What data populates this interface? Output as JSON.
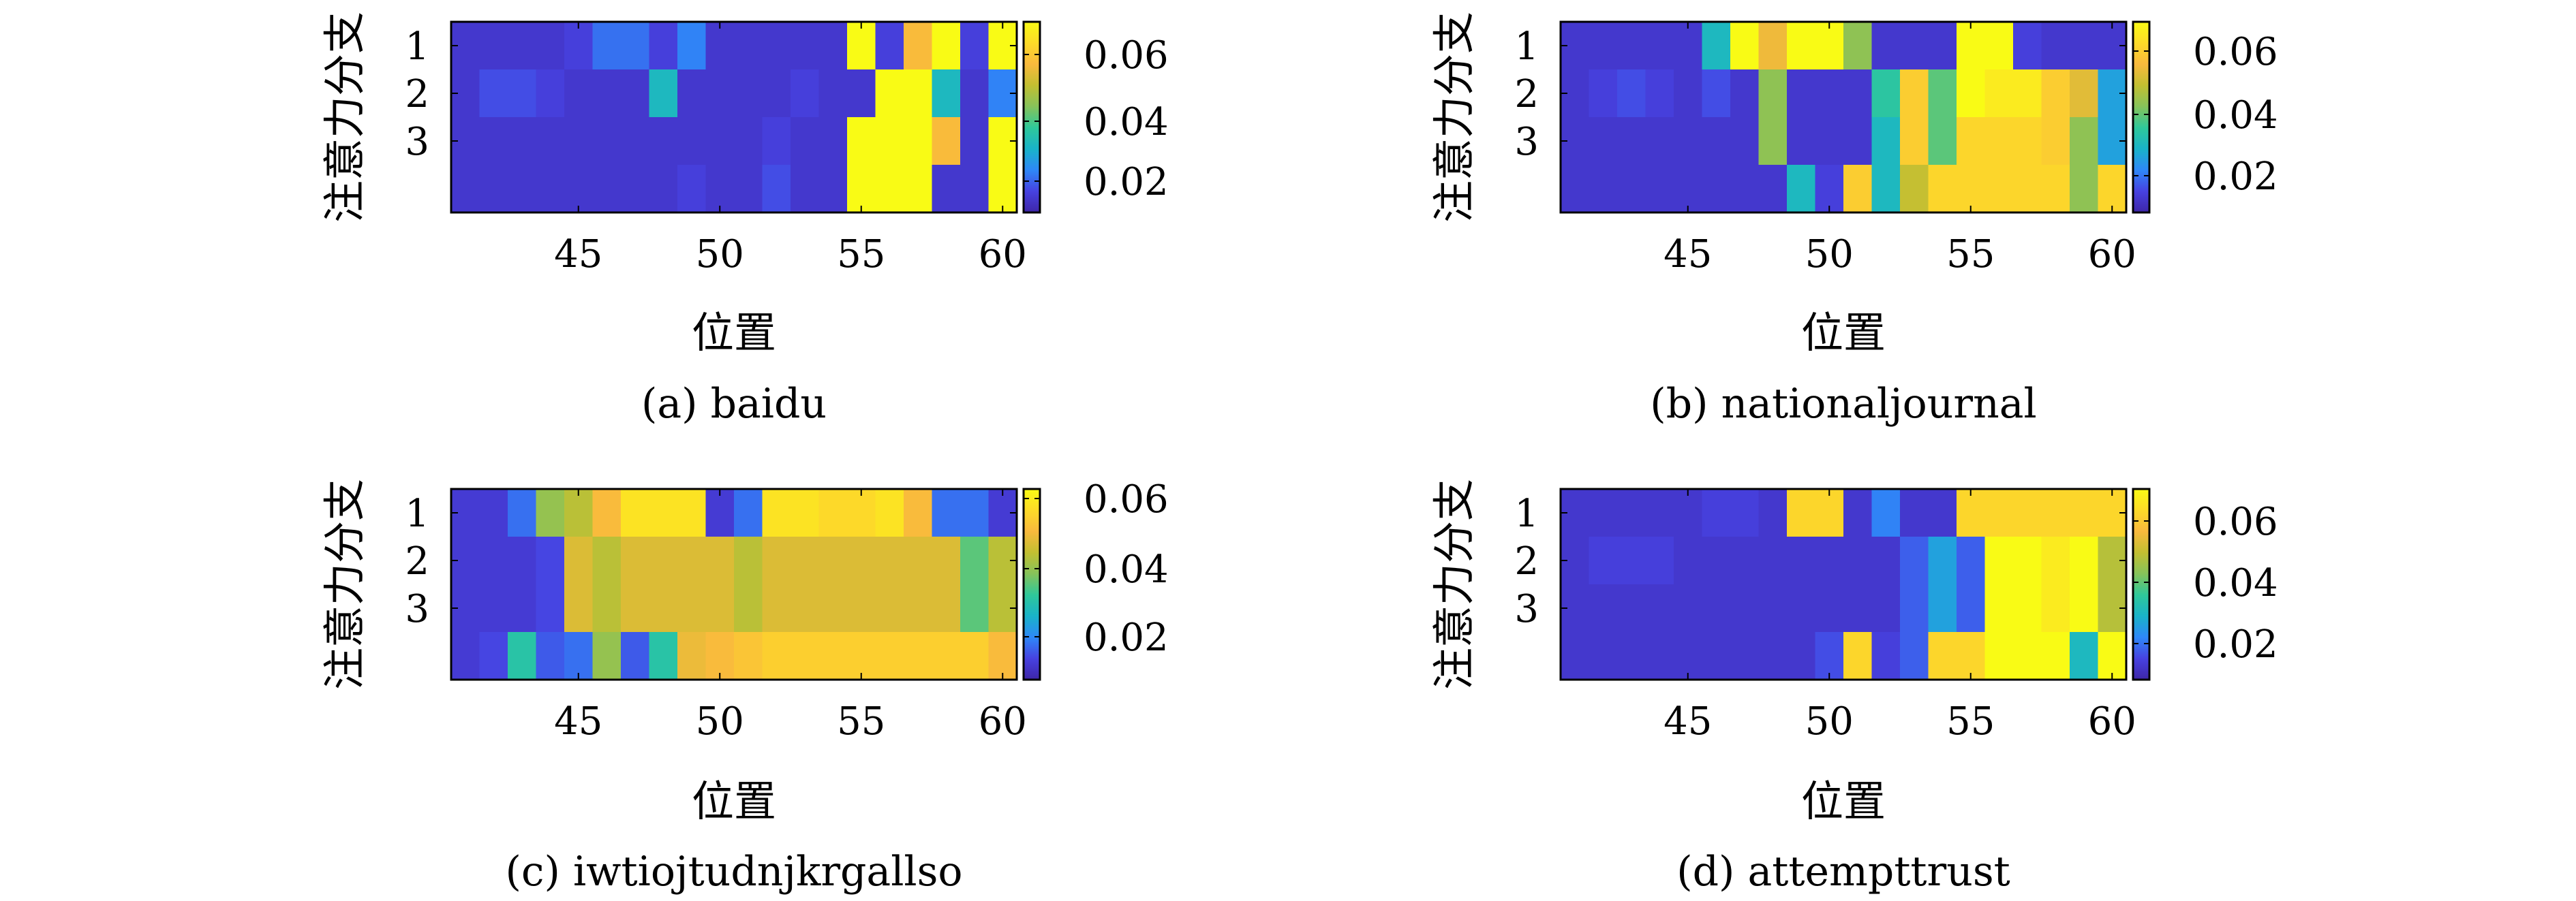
{
  "figure": {
    "colorscale": [
      "#3e26a8",
      "#4742e1",
      "#2e88f8",
      "#19b3c9",
      "#2fc89a",
      "#86c35a",
      "#c3bf31",
      "#f9b93d",
      "#fddb28",
      "#f9fb15"
    ]
  },
  "chart_data": [
    {
      "type": "heatmap",
      "caption": "(a) baidu",
      "xlabel": "位置",
      "ylabel": "注意力分支",
      "x_ticks": [
        45,
        50,
        55,
        60
      ],
      "y_ticks": [
        1,
        2,
        3
      ],
      "xlim": [
        40.5,
        60.5
      ],
      "ylim": [
        0.5,
        4.5
      ],
      "colorbar_ticks": [
        "0.02",
        "0.04",
        "0.06"
      ],
      "colorbar_range": [
        0.005,
        0.075
      ],
      "x": [
        41,
        42,
        43,
        44,
        45,
        46,
        47,
        48,
        49,
        50,
        51,
        52,
        53,
        54,
        55,
        56,
        57,
        58,
        59,
        60
      ],
      "rows": [
        {
          "branch": 1,
          "values": [
            0.01,
            0.01,
            0.01,
            0.01,
            0.012,
            0.018,
            0.018,
            0.012,
            0.02,
            0.01,
            0.01,
            0.01,
            0.01,
            0.01,
            0.075,
            0.012,
            0.06,
            0.075,
            0.012,
            0.075
          ]
        },
        {
          "branch": 2,
          "values": [
            0.01,
            0.014,
            0.014,
            0.012,
            0.01,
            0.01,
            0.01,
            0.03,
            0.01,
            0.01,
            0.01,
            0.01,
            0.012,
            0.01,
            0.01,
            0.075,
            0.075,
            0.03,
            0.01,
            0.02
          ]
        },
        {
          "branch": 3,
          "values": [
            0.01,
            0.01,
            0.01,
            0.01,
            0.01,
            0.01,
            0.01,
            0.01,
            0.01,
            0.01,
            0.01,
            0.012,
            0.01,
            0.01,
            0.075,
            0.075,
            0.075,
            0.06,
            0.01,
            0.075
          ]
        },
        {
          "branch": 4,
          "values": [
            0.01,
            0.01,
            0.01,
            0.01,
            0.01,
            0.01,
            0.01,
            0.01,
            0.012,
            0.01,
            0.01,
            0.014,
            0.01,
            0.01,
            0.075,
            0.075,
            0.075,
            0.01,
            0.01,
            0.075
          ]
        }
      ]
    },
    {
      "type": "heatmap",
      "caption": "(b) nationaljournal",
      "xlabel": "位置",
      "ylabel": "注意力分支",
      "x_ticks": [
        45,
        50,
        55,
        60
      ],
      "y_ticks": [
        1,
        2,
        3
      ],
      "xlim": [
        40.5,
        60.5
      ],
      "ylim": [
        0.5,
        4.5
      ],
      "colorbar_ticks": [
        "0.02",
        "0.04",
        "0.06"
      ],
      "colorbar_range": [
        0.005,
        0.075
      ],
      "x": [
        41,
        42,
        43,
        44,
        45,
        46,
        47,
        48,
        49,
        50,
        51,
        52,
        53,
        54,
        55,
        56,
        57,
        58,
        59,
        60
      ],
      "rows": [
        {
          "branch": 1,
          "values": [
            0.01,
            0.01,
            0.01,
            0.01,
            0.01,
            0.03,
            0.075,
            0.058,
            0.075,
            0.075,
            0.045,
            0.01,
            0.01,
            0.01,
            0.075,
            0.075,
            0.012,
            0.01,
            0.01,
            0.01
          ]
        },
        {
          "branch": 2,
          "values": [
            0.01,
            0.012,
            0.014,
            0.012,
            0.01,
            0.014,
            0.01,
            0.045,
            0.01,
            0.01,
            0.01,
            0.035,
            0.064,
            0.04,
            0.075,
            0.071,
            0.071,
            0.064,
            0.056,
            0.025
          ]
        },
        {
          "branch": 3,
          "values": [
            0.01,
            0.01,
            0.01,
            0.01,
            0.01,
            0.01,
            0.01,
            0.045,
            0.01,
            0.01,
            0.01,
            0.03,
            0.064,
            0.04,
            0.066,
            0.066,
            0.066,
            0.064,
            0.045,
            0.025
          ]
        },
        {
          "branch": 4,
          "values": [
            0.01,
            0.01,
            0.01,
            0.01,
            0.01,
            0.01,
            0.01,
            0.01,
            0.03,
            0.012,
            0.064,
            0.03,
            0.052,
            0.066,
            0.066,
            0.066,
            0.066,
            0.066,
            0.045,
            0.066
          ]
        }
      ]
    },
    {
      "type": "heatmap",
      "caption": "(c) iwtiojtudnjkrgallso",
      "xlabel": "位置",
      "ylabel": "注意力分支",
      "x_ticks": [
        45,
        50,
        55,
        60
      ],
      "y_ticks": [
        1,
        2,
        3
      ],
      "xlim": [
        40.5,
        60.5
      ],
      "ylim": [
        0.5,
        4.5
      ],
      "colorbar_ticks": [
        "0.02",
        "0.04",
        "0.06"
      ],
      "colorbar_range": [
        0.005,
        0.065
      ],
      "x": [
        41,
        42,
        43,
        44,
        45,
        46,
        47,
        48,
        49,
        50,
        51,
        52,
        53,
        54,
        55,
        56,
        57,
        58,
        59,
        60
      ],
      "rows": [
        {
          "branch": 1,
          "values": [
            0.01,
            0.01,
            0.016,
            0.04,
            0.044,
            0.052,
            0.06,
            0.06,
            0.06,
            0.01,
            0.016,
            0.06,
            0.06,
            0.058,
            0.058,
            0.06,
            0.052,
            0.016,
            0.016,
            0.01
          ]
        },
        {
          "branch": 2,
          "values": [
            0.01,
            0.01,
            0.01,
            0.012,
            0.048,
            0.044,
            0.048,
            0.048,
            0.048,
            0.048,
            0.044,
            0.048,
            0.048,
            0.048,
            0.048,
            0.048,
            0.048,
            0.048,
            0.035,
            0.044
          ]
        },
        {
          "branch": 3,
          "values": [
            0.01,
            0.01,
            0.01,
            0.012,
            0.048,
            0.044,
            0.048,
            0.048,
            0.048,
            0.048,
            0.044,
            0.048,
            0.048,
            0.048,
            0.048,
            0.048,
            0.048,
            0.048,
            0.035,
            0.044
          ]
        },
        {
          "branch": 4,
          "values": [
            0.01,
            0.012,
            0.03,
            0.014,
            0.016,
            0.04,
            0.014,
            0.03,
            0.05,
            0.052,
            0.054,
            0.056,
            0.056,
            0.056,
            0.056,
            0.056,
            0.056,
            0.056,
            0.056,
            0.052
          ]
        }
      ]
    },
    {
      "type": "heatmap",
      "caption": "(d) attempttrust",
      "xlabel": "位置",
      "ylabel": "注意力分支",
      "x_ticks": [
        45,
        50,
        55,
        60
      ],
      "y_ticks": [
        1,
        2,
        3
      ],
      "xlim": [
        40.5,
        60.5
      ],
      "ylim": [
        0.5,
        4.5
      ],
      "colorbar_ticks": [
        "0.02",
        "0.04",
        "0.06"
      ],
      "colorbar_range": [
        0.005,
        0.075
      ],
      "x": [
        41,
        42,
        43,
        44,
        45,
        46,
        47,
        48,
        49,
        50,
        51,
        52,
        53,
        54,
        55,
        56,
        57,
        58,
        59,
        60
      ],
      "rows": [
        {
          "branch": 1,
          "values": [
            0.01,
            0.01,
            0.01,
            0.01,
            0.01,
            0.012,
            0.012,
            0.01,
            0.066,
            0.066,
            0.01,
            0.02,
            0.01,
            0.01,
            0.066,
            0.066,
            0.066,
            0.066,
            0.066,
            0.066
          ]
        },
        {
          "branch": 2,
          "values": [
            0.01,
            0.012,
            0.012,
            0.012,
            0.01,
            0.01,
            0.01,
            0.01,
            0.01,
            0.01,
            0.01,
            0.01,
            0.016,
            0.025,
            0.016,
            0.075,
            0.075,
            0.071,
            0.075,
            0.05
          ]
        },
        {
          "branch": 3,
          "values": [
            0.01,
            0.01,
            0.01,
            0.01,
            0.01,
            0.01,
            0.01,
            0.01,
            0.01,
            0.01,
            0.01,
            0.01,
            0.016,
            0.025,
            0.016,
            0.075,
            0.075,
            0.071,
            0.075,
            0.05
          ]
        },
        {
          "branch": 4,
          "values": [
            0.01,
            0.01,
            0.01,
            0.01,
            0.01,
            0.01,
            0.01,
            0.01,
            0.01,
            0.014,
            0.066,
            0.012,
            0.016,
            0.066,
            0.066,
            0.075,
            0.075,
            0.075,
            0.03,
            0.075
          ]
        }
      ]
    }
  ]
}
